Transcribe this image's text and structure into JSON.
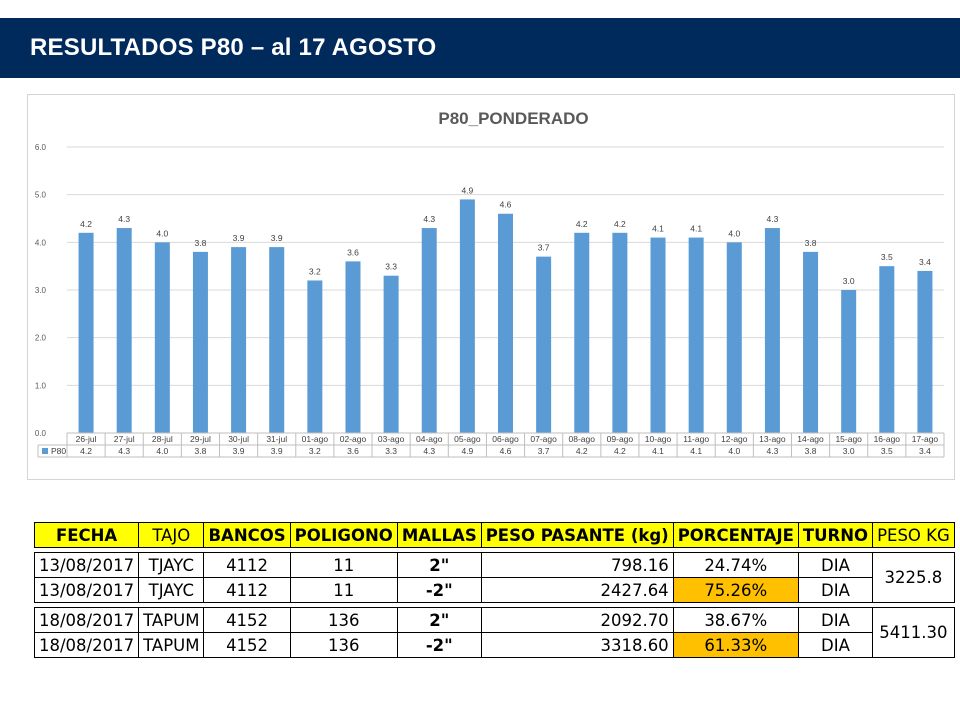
{
  "header": {
    "title": "RESULTADOS P80 – al 17 AGOSTO"
  },
  "colors": {
    "banner": "#002a5c",
    "bar": "#5b9bd5",
    "highlight": "#ffc000",
    "header_fill": "#ffff00"
  },
  "chart_data": {
    "type": "bar",
    "title": "P80_PONDERADO",
    "categories": [
      "26-jul",
      "27-jul",
      "28-jul",
      "29-jul",
      "30-jul",
      "31-jul",
      "01-ago",
      "02-ago",
      "03-ago",
      "04-ago",
      "05-ago",
      "06-ago",
      "07-ago",
      "08-ago",
      "09-ago",
      "10-ago",
      "11-ago",
      "12-ago",
      "13-ago",
      "14-ago",
      "15-ago",
      "16-ago",
      "17-ago"
    ],
    "series": [
      {
        "name": "P80",
        "values": [
          4.2,
          4.3,
          4.0,
          3.8,
          3.9,
          3.9,
          3.2,
          3.6,
          3.3,
          4.3,
          4.9,
          4.6,
          3.7,
          4.2,
          4.2,
          4.1,
          4.1,
          4.0,
          4.3,
          3.8,
          3.0,
          3.5,
          3.4
        ]
      }
    ],
    "ylim": [
      0,
      6
    ],
    "yticks": [
      "0.0",
      "1.0",
      "2.0",
      "3.0",
      "4.0",
      "5.0",
      "6.0"
    ],
    "grid": true,
    "legend": "data-table"
  },
  "table": {
    "headers": [
      "FECHA",
      "TAJO",
      "BANCOS",
      "POLIGONO",
      "MALLAS",
      "PESO PASANTE (kg)",
      "PORCENTAJE",
      "TURNO",
      "PESO KG"
    ],
    "rows": [
      {
        "fecha": "13/08/2017",
        "tajo": "TJAYC",
        "bancos": "4112",
        "poligono": "11",
        "mallas": "2\"",
        "peso": "798.16",
        "porcentaje": "24.74%",
        "turno": "DIA"
      },
      {
        "fecha": "13/08/2017",
        "tajo": "TJAYC",
        "bancos": "4112",
        "poligono": "11",
        "mallas": "-2\"",
        "peso": "2427.64",
        "porcentaje": "75.26%",
        "turno": "DIA"
      },
      {
        "fecha": "18/08/2017",
        "tajo": "TAPUM",
        "bancos": "4152",
        "poligono": "136",
        "mallas": "2\"",
        "peso": "2092.70",
        "porcentaje": "38.67%",
        "turno": "DIA"
      },
      {
        "fecha": "18/08/2017",
        "tajo": "TAPUM",
        "bancos": "4152",
        "poligono": "136",
        "mallas": "-2\"",
        "peso": "3318.60",
        "porcentaje": "61.33%",
        "turno": "DIA"
      }
    ],
    "peso_kg": [
      "3225.8",
      "5411.30"
    ]
  }
}
